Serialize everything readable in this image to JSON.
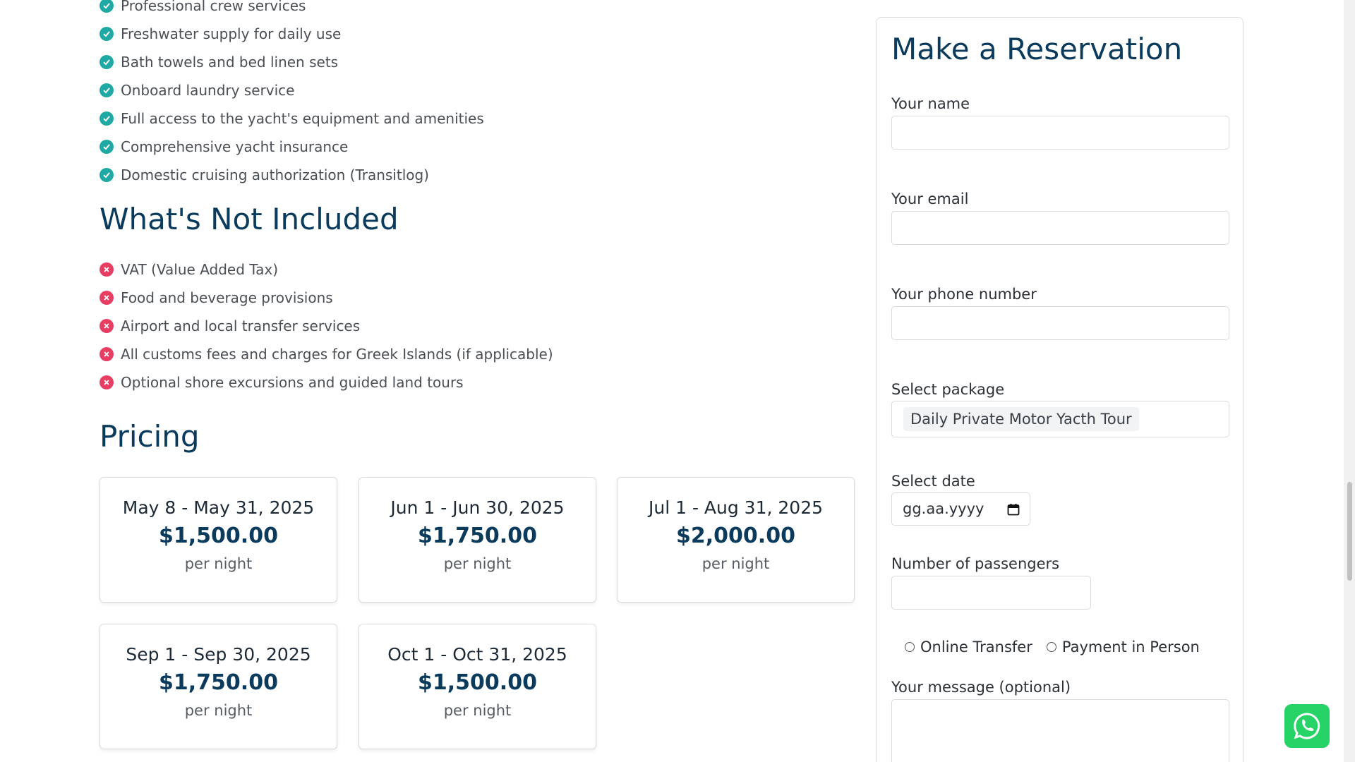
{
  "included": {
    "items": [
      "Professional crew services",
      "Freshwater supply for daily use",
      "Bath towels and bed linen sets",
      "Onboard laundry service",
      "Full access to the yacht's equipment and amenities",
      "Comprehensive yacht insurance",
      "Domestic cruising authorization (Transitlog)"
    ]
  },
  "not_included": {
    "title": "What's Not Included",
    "items": [
      "VAT (Value Added Tax)",
      "Food and beverage provisions",
      "Airport and local transfer services",
      "All customs fees and charges for Greek Islands (if applicable)",
      "Optional shore excursions and guided land tours"
    ]
  },
  "pricing": {
    "title": "Pricing",
    "cards": [
      {
        "range": "May 8 - May 31, 2025",
        "amount": "$1,500.00",
        "unit": "per night"
      },
      {
        "range": "Jun 1 - Jun 30, 2025",
        "amount": "$1,750.00",
        "unit": "per night"
      },
      {
        "range": "Jul 1 - Aug 31, 2025",
        "amount": "$2,000.00",
        "unit": "per night"
      },
      {
        "range": "Sep 1 - Sep 30, 2025",
        "amount": "$1,750.00",
        "unit": "per night"
      },
      {
        "range": "Oct 1 - Oct 31, 2025",
        "amount": "$1,500.00",
        "unit": "per night"
      }
    ]
  },
  "reservation": {
    "title": "Make a Reservation",
    "name_label": "Your name",
    "email_label": "Your email",
    "phone_label": "Your phone number",
    "package_label": "Select package",
    "package_value": "Daily Private Motor Yacth Tour",
    "date_label": "Select date",
    "date_placeholder": "gg.aa.yyyy",
    "passengers_label": "Number of passengers",
    "payment_options": [
      "Online Transfer",
      "Payment in Person"
    ],
    "message_label": "Your message (optional)"
  },
  "colors": {
    "heading": "#0b3b5c",
    "check": "#1ea9a3",
    "cross": "#e83e64",
    "whatsapp": "#25d366"
  }
}
